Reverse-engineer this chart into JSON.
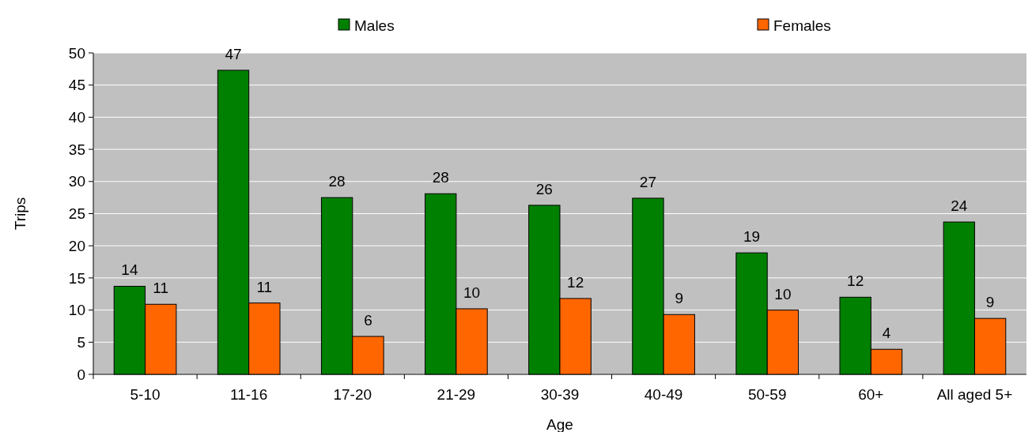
{
  "chart_data": {
    "type": "bar",
    "xlabel": "Age",
    "ylabel": "Trips",
    "categories": [
      "5-10",
      "11-16",
      "17-20",
      "21-29",
      "30-39",
      "40-49",
      "50-59",
      "60+",
      "All aged 5+"
    ],
    "series": [
      {
        "name": "Males",
        "color": "#008000",
        "values": [
          13.7,
          47.3,
          27.5,
          28.1,
          26.3,
          27.4,
          18.9,
          12.0,
          23.7
        ],
        "value_labels": [
          "14",
          "47",
          "28",
          "28",
          "26",
          "27",
          "19",
          "12",
          "24"
        ]
      },
      {
        "name": "Females",
        "color": "#ff6600",
        "values": [
          10.9,
          11.1,
          5.9,
          10.2,
          11.8,
          9.3,
          10.0,
          3.9,
          8.7
        ],
        "value_labels": [
          "11",
          "11",
          "6",
          "10",
          "12",
          "9",
          "10",
          "4",
          "9"
        ]
      }
    ],
    "ylim": [
      0,
      50
    ],
    "yticks": [
      0,
      5,
      10,
      15,
      20,
      25,
      30,
      35,
      40,
      45,
      50
    ],
    "grid": "y",
    "legend": "top"
  }
}
